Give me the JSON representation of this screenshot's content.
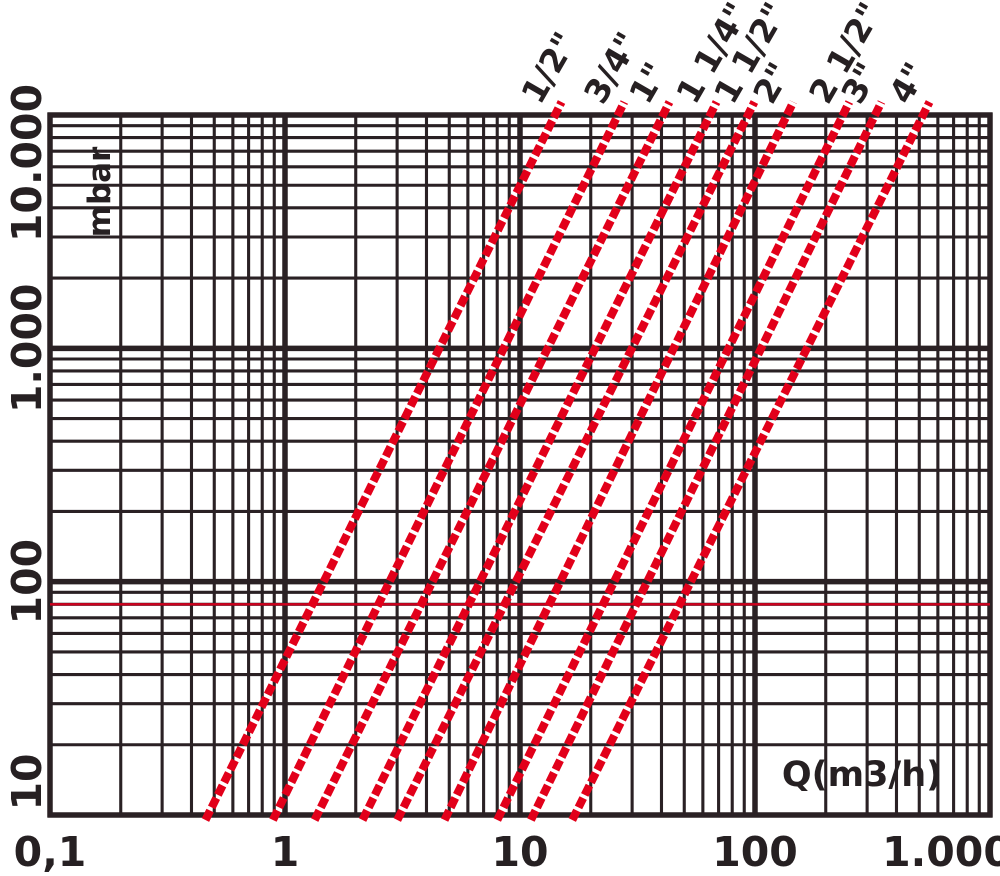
{
  "chart_data": {
    "type": "line",
    "title": "",
    "xlabel": "Q(m3/h)",
    "ylabel": "mbar",
    "x_scale": "log",
    "y_scale": "log",
    "x_range": [
      0.1,
      1000
    ],
    "y_range": [
      10,
      10000
    ],
    "grid": true,
    "legend_position": "top-rotated-labels",
    "x_ticks": [
      {
        "label": "0,1",
        "value": 0.1
      },
      {
        "label": "1",
        "value": 1
      },
      {
        "label": "10",
        "value": 10
      },
      {
        "label": "100",
        "value": 100
      },
      {
        "label": "1.000",
        "value": 1000
      }
    ],
    "y_ticks": [
      {
        "label": "10",
        "value": 10
      },
      {
        "label": "100",
        "value": 100
      },
      {
        "label": "1.000",
        "value": 1000
      },
      {
        "label": "10.000",
        "value": 10000
      }
    ],
    "reference_line": {
      "axis": "y",
      "value": 80
    },
    "series": [
      {
        "name": "1/2\"",
        "points": [
          [
            0.47,
            10
          ],
          [
            14.1,
            10000
          ]
        ]
      },
      {
        "name": "3/4\"",
        "points": [
          [
            0.91,
            10
          ],
          [
            26.1,
            10000
          ]
        ]
      },
      {
        "name": "1\"",
        "points": [
          [
            1.37,
            10
          ],
          [
            40.6,
            10000
          ]
        ]
      },
      {
        "name": "1 1/4\"",
        "points": [
          [
            2.19,
            10
          ],
          [
            64.4,
            10000
          ]
        ]
      },
      {
        "name": "1 1/2\"",
        "points": [
          [
            3.08,
            10
          ],
          [
            93.3,
            10000
          ]
        ]
      },
      {
        "name": "2\"",
        "points": [
          [
            4.89,
            10
          ],
          [
            136.8,
            10000
          ]
        ]
      },
      {
        "name": "2 1/2\"",
        "points": [
          [
            8.2,
            10
          ],
          [
            236.6,
            10000
          ]
        ]
      },
      {
        "name": "3\"",
        "points": [
          [
            11.4,
            10
          ],
          [
            324.3,
            10000
          ]
        ]
      },
      {
        "name": "4\"",
        "points": [
          [
            17.1,
            10
          ],
          [
            518.8,
            10000
          ]
        ]
      }
    ],
    "colors": {
      "background": "#ffffff",
      "grid": "#2a2124",
      "text": "#262022",
      "series": "#e2001a",
      "reference": "#cf001d"
    }
  }
}
